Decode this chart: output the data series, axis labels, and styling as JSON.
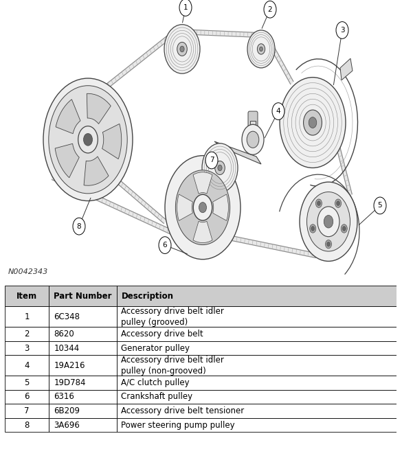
{
  "figure_note": "N0042343",
  "bg_color": "#ffffff",
  "table_headers": [
    "Item",
    "Part Number",
    "Description"
  ],
  "table_data": [
    [
      "1",
      "6C348",
      "Accessory drive belt idler\npulley (grooved)"
    ],
    [
      "2",
      "8620",
      "Accessory drive belt"
    ],
    [
      "3",
      "10344",
      "Generator pulley"
    ],
    [
      "4",
      "19A216",
      "Accessory drive belt idler\npulley (non-grooved)"
    ],
    [
      "5",
      "19D784",
      "A/C clutch pulley"
    ],
    [
      "6",
      "6316",
      "Crankshaft pulley"
    ],
    [
      "7",
      "6B209",
      "Accessory drive belt tensioner"
    ],
    [
      "8",
      "3A696",
      "Power steering pump pulley"
    ]
  ],
  "line_color": "#555555",
  "belt_color": "#888888",
  "pulley_edge": "#444444",
  "pulley_fill": "#f0f0f0",
  "pulley_mid": "#d8d8d8",
  "callout_bg": "#ffffff",
  "table_header_bg": "#cccccc",
  "table_border": "#000000",
  "table_fontsize": 8.5,
  "header_fontsize": 8.5,
  "note_fontsize": 8
}
